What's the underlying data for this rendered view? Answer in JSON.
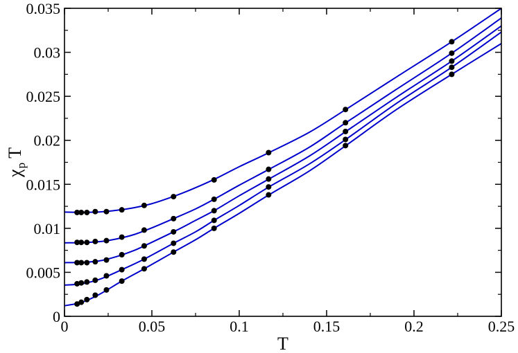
{
  "chart_data": {
    "type": "line",
    "title": "",
    "xlabel": "T",
    "ylabel": {
      "main": "χ",
      "subscript": "p",
      "suffix": "T"
    },
    "xlim": [
      0,
      0.25
    ],
    "ylim": [
      0,
      0.035
    ],
    "x_ticks": [
      0,
      0.05,
      0.1,
      0.15,
      0.2,
      0.25
    ],
    "x_tick_labels": [
      "0",
      "0.05",
      "0.1",
      "0.15",
      "0.2",
      "0.25"
    ],
    "y_ticks": [
      0,
      0.005,
      0.01,
      0.015,
      0.02,
      0.025,
      0.03,
      0.035
    ],
    "y_tick_labels": [
      "0",
      "0.005",
      "0.01",
      "0.015",
      "0.02",
      "0.025",
      "0.03",
      "0.035"
    ],
    "grid": false,
    "legend": "none",
    "line_color": "#0000cc",
    "marker_color": "#000000",
    "x": [
      0.0072,
      0.0096,
      0.0128,
      0.0176,
      0.024,
      0.0328,
      0.0456,
      0.0624,
      0.0856,
      0.1168,
      0.1608,
      0.2216
    ],
    "series": [
      {
        "curve": [
          [
            0.0,
            0.01185
          ],
          [
            0.01,
            0.01182
          ],
          [
            0.02,
            0.01186
          ],
          [
            0.03,
            0.01205
          ],
          [
            0.04,
            0.01235
          ],
          [
            0.05,
            0.0128
          ],
          [
            0.06,
            0.01345
          ],
          [
            0.07,
            0.0142
          ],
          [
            0.085,
            0.0155
          ],
          [
            0.1,
            0.017
          ],
          [
            0.117,
            0.0186
          ],
          [
            0.14,
            0.0209
          ],
          [
            0.161,
            0.0235
          ],
          [
            0.19,
            0.0272
          ],
          [
            0.2216,
            0.0312
          ],
          [
            0.25,
            0.035
          ]
        ],
        "points": [
          0.0118,
          0.0118,
          0.0118,
          0.0119,
          0.0119,
          0.0121,
          0.0126,
          0.0136,
          0.0155,
          0.0186,
          0.0235,
          0.0312
        ]
      },
      {
        "curve": [
          [
            0.0,
            0.00835
          ],
          [
            0.01,
            0.00838
          ],
          [
            0.02,
            0.00848
          ],
          [
            0.03,
            0.0088
          ],
          [
            0.04,
            0.0093
          ],
          [
            0.05,
            0.01005
          ],
          [
            0.0624,
            0.0111
          ],
          [
            0.075,
            0.0122
          ],
          [
            0.0856,
            0.0133
          ],
          [
            0.1,
            0.0149
          ],
          [
            0.117,
            0.0167
          ],
          [
            0.14,
            0.0192
          ],
          [
            0.161,
            0.022
          ],
          [
            0.19,
            0.0258
          ],
          [
            0.2216,
            0.0299
          ],
          [
            0.25,
            0.0339
          ]
        ],
        "points": [
          0.0084,
          0.0084,
          0.0084,
          0.0085,
          0.0086,
          0.009,
          0.0098,
          0.0111,
          0.0133,
          0.0167,
          0.022,
          0.0299
        ]
      },
      {
        "curve": [
          [
            0.0,
            0.0061
          ],
          [
            0.01,
            0.00613
          ],
          [
            0.02,
            0.0063
          ],
          [
            0.03,
            0.0068
          ],
          [
            0.04,
            0.0075
          ],
          [
            0.0456,
            0.008
          ],
          [
            0.0624,
            0.0096
          ],
          [
            0.075,
            0.0109
          ],
          [
            0.0856,
            0.012
          ],
          [
            0.1,
            0.0137
          ],
          [
            0.117,
            0.0156
          ],
          [
            0.14,
            0.0182
          ],
          [
            0.161,
            0.021
          ],
          [
            0.19,
            0.0249
          ],
          [
            0.2216,
            0.029
          ],
          [
            0.25,
            0.033
          ]
        ],
        "points": [
          0.0061,
          0.0061,
          0.0061,
          0.0062,
          0.0064,
          0.007,
          0.008,
          0.0096,
          0.012,
          0.0156,
          0.021,
          0.029
        ]
      },
      {
        "curve": [
          [
            0.0,
            0.00355
          ],
          [
            0.01,
            0.0037
          ],
          [
            0.02,
            0.0042
          ],
          [
            0.0328,
            0.0053
          ],
          [
            0.0456,
            0.0065
          ],
          [
            0.0624,
            0.0083
          ],
          [
            0.075,
            0.0096
          ],
          [
            0.0856,
            0.0109
          ],
          [
            0.1,
            0.0126
          ],
          [
            0.117,
            0.0147
          ],
          [
            0.14,
            0.0173
          ],
          [
            0.161,
            0.0201
          ],
          [
            0.19,
            0.0242
          ],
          [
            0.2216,
            0.0283
          ],
          [
            0.25,
            0.0323
          ]
        ],
        "points": [
          0.0037,
          0.0038,
          0.0039,
          0.0041,
          0.0046,
          0.0053,
          0.0065,
          0.0083,
          0.0109,
          0.0147,
          0.0201,
          0.0283
        ]
      },
      {
        "curve": [
          [
            0.0,
            0.0012
          ],
          [
            0.01,
            0.0016
          ],
          [
            0.02,
            0.0025
          ],
          [
            0.0328,
            0.004
          ],
          [
            0.0456,
            0.0054
          ],
          [
            0.0624,
            0.0073
          ],
          [
            0.075,
            0.0087
          ],
          [
            0.0856,
            0.01
          ],
          [
            0.1,
            0.0117
          ],
          [
            0.117,
            0.0138
          ],
          [
            0.14,
            0.0165
          ],
          [
            0.161,
            0.0194
          ],
          [
            0.19,
            0.0235
          ],
          [
            0.2216,
            0.0275
          ],
          [
            0.25,
            0.031
          ]
        ],
        "points": [
          0.0014,
          0.0016,
          0.0019,
          0.0024,
          0.003,
          0.004,
          0.0054,
          0.0073,
          0.01,
          0.0138,
          0.0194,
          0.0275
        ]
      }
    ]
  }
}
